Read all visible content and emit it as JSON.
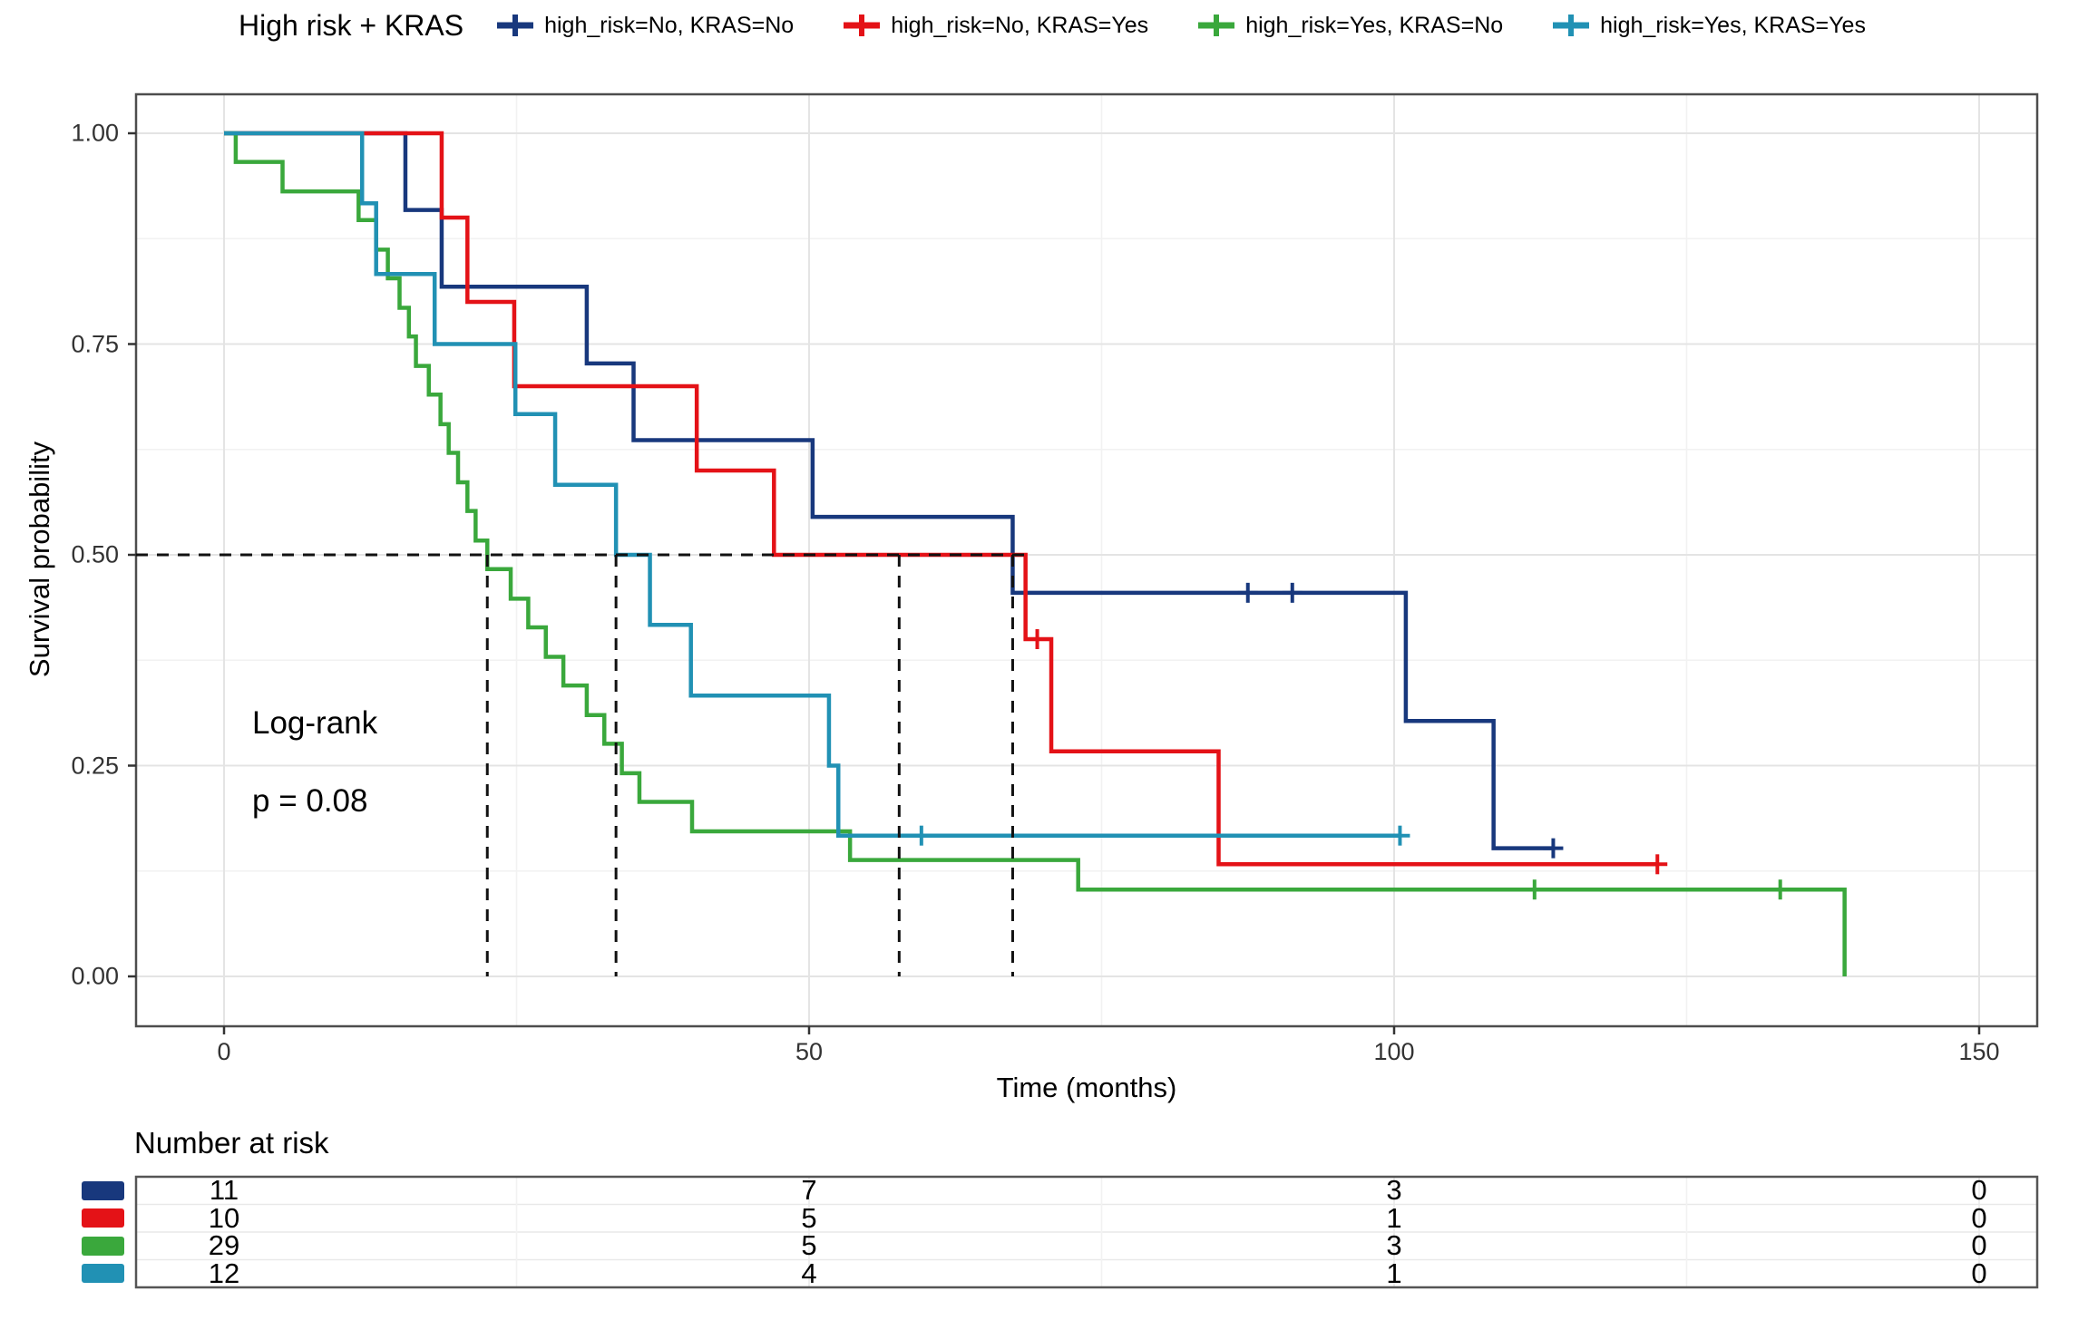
{
  "legend": {
    "title": "High risk + KRAS",
    "entries": [
      {
        "label": "high_risk=No, KRAS=No",
        "color": "#18387d"
      },
      {
        "label": "high_risk=No, KRAS=Yes",
        "color": "#e41217"
      },
      {
        "label": "high_risk=Yes, KRAS=No",
        "color": "#3aa83c"
      },
      {
        "label": "high_risk=Yes, KRAS=Yes",
        "color": "#2191b4"
      }
    ]
  },
  "annotations": {
    "logrank": "Log-rank",
    "pvalue": "p = 0.08"
  },
  "chart_data": {
    "type": "line",
    "subtype": "kaplan-meier-step",
    "title": "High risk + KRAS",
    "xlabel": "Time (months)",
    "ylabel": "Survival probability",
    "xlim": [
      0,
      150
    ],
    "ylim": [
      0,
      1
    ],
    "x_ticks": [
      {
        "value": 0,
        "label": "0"
      },
      {
        "value": 50,
        "label": "50"
      },
      {
        "value": 100,
        "label": "100"
      },
      {
        "value": 150,
        "label": "150"
      }
    ],
    "y_ticks": [
      {
        "value": 1.0,
        "label": "1.00"
      },
      {
        "value": 0.75,
        "label": "0.75"
      },
      {
        "value": 0.5,
        "label": "0.50"
      },
      {
        "value": 0.25,
        "label": "0.25"
      },
      {
        "value": 0.0,
        "label": "0.00"
      }
    ],
    "x_minor_ticks": [
      25,
      75,
      125
    ],
    "y_minor_ticks": [
      0.875,
      0.625,
      0.375,
      0.125
    ],
    "grid": true,
    "legend_position": "top",
    "series": [
      {
        "name": "high_risk=No, KRAS=No",
        "color": "#18387d",
        "end": 113.6,
        "steps": [
          [
            0,
            1
          ],
          [
            15.5,
            0.909
          ],
          [
            18.6,
            0.818
          ],
          [
            31,
            0.727
          ],
          [
            35,
            0.636
          ],
          [
            50.3,
            0.545
          ],
          [
            67.4,
            0.455
          ],
          [
            101,
            0.303
          ],
          [
            108.5,
            0.152
          ]
        ],
        "censors": [
          [
            87.5,
            0.455
          ],
          [
            91.3,
            0.455
          ],
          [
            113.6,
            0.152
          ]
        ]
      },
      {
        "name": "high_risk=No, KRAS=Yes",
        "color": "#e41217",
        "end": 122.5,
        "steps": [
          [
            0,
            1
          ],
          [
            18.6,
            0.9
          ],
          [
            20.8,
            0.8
          ],
          [
            24.8,
            0.7
          ],
          [
            40.4,
            0.6
          ],
          [
            47,
            0.5
          ],
          [
            68.5,
            0.4
          ],
          [
            70.7,
            0.267
          ],
          [
            85,
            0.133
          ]
        ],
        "censors": [
          [
            69.5,
            0.4
          ],
          [
            122.5,
            0.133
          ]
        ]
      },
      {
        "name": "high_risk=Yes, KRAS=No",
        "color": "#3aa83c",
        "end": 138.5,
        "steps": [
          [
            0,
            1
          ],
          [
            1,
            0.966
          ],
          [
            5,
            0.931
          ],
          [
            11.5,
            0.897
          ],
          [
            13,
            0.862
          ],
          [
            14,
            0.828
          ],
          [
            15,
            0.793
          ],
          [
            15.8,
            0.759
          ],
          [
            16.4,
            0.724
          ],
          [
            17.5,
            0.69
          ],
          [
            18.5,
            0.655
          ],
          [
            19.2,
            0.621
          ],
          [
            20,
            0.586
          ],
          [
            20.8,
            0.552
          ],
          [
            21.5,
            0.517
          ],
          [
            22.5,
            0.483
          ],
          [
            24.5,
            0.448
          ],
          [
            26,
            0.414
          ],
          [
            27.5,
            0.379
          ],
          [
            29,
            0.345
          ],
          [
            31,
            0.31
          ],
          [
            32.5,
            0.276
          ],
          [
            34,
            0.241
          ],
          [
            35.5,
            0.207
          ],
          [
            40,
            0.172
          ],
          [
            53.5,
            0.138
          ],
          [
            73,
            0.103
          ],
          [
            138.5,
            0
          ]
        ],
        "censors": [
          [
            112,
            0.103
          ],
          [
            133,
            0.103
          ]
        ]
      },
      {
        "name": "high_risk=Yes, KRAS=Yes",
        "color": "#2191b4",
        "end": 100.5,
        "steps": [
          [
            0,
            1
          ],
          [
            11.8,
            0.917
          ],
          [
            13,
            0.833
          ],
          [
            18,
            0.75
          ],
          [
            24.9,
            0.667
          ],
          [
            28.3,
            0.583
          ],
          [
            33.5,
            0.5
          ],
          [
            36.4,
            0.417
          ],
          [
            39.9,
            0.333
          ],
          [
            51.7,
            0.25
          ],
          [
            52.5,
            0.167
          ]
        ],
        "censors": [
          [
            59.6,
            0.167
          ],
          [
            100.5,
            0.167
          ]
        ]
      }
    ],
    "median_lines": {
      "survival_level": 0.5,
      "horizontal_extent_time": 68.5,
      "vertical_times": [
        22.5,
        33.5,
        57.7,
        67.4
      ]
    }
  },
  "risk_table": {
    "title": "Number at risk",
    "times": [
      0,
      50,
      100,
      150
    ],
    "rows": [
      {
        "group": "high_risk=No, KRAS=No",
        "color": "#18387d",
        "counts": [
          11,
          7,
          3,
          0
        ]
      },
      {
        "group": "high_risk=No, KRAS=Yes",
        "color": "#e41217",
        "counts": [
          10,
          5,
          1,
          0
        ]
      },
      {
        "group": "high_risk=Yes, KRAS=No",
        "color": "#3aa83c",
        "counts": [
          29,
          5,
          3,
          0
        ]
      },
      {
        "group": "high_risk=Yes, KRAS=Yes",
        "color": "#2191b4",
        "counts": [
          12,
          4,
          1,
          0
        ]
      }
    ]
  }
}
